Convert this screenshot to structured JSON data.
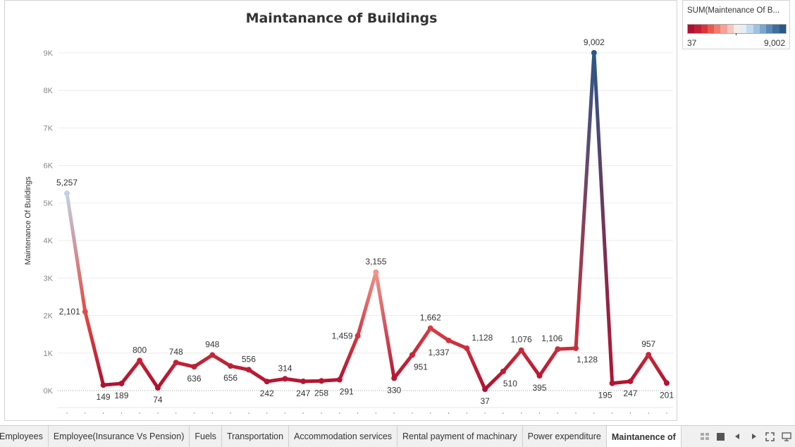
{
  "chart_data": {
    "type": "line",
    "title": "Maintanance of Buildings",
    "xlabel": "",
    "ylabel": "Maintenance Of Buildings",
    "ylim": [
      0,
      9300
    ],
    "y_ticks": [
      "0K",
      "1K",
      "2K",
      "3K",
      "4K",
      "5K",
      "6K",
      "7K",
      "8K",
      "9K"
    ],
    "grid": true,
    "values": [
      5257,
      2101,
      149,
      189,
      800,
      74,
      748,
      636,
      948,
      656,
      556,
      242,
      314,
      247,
      258,
      291,
      1459,
      3155,
      330,
      951,
      1662,
      1337,
      1128,
      37,
      510,
      1076,
      395,
      1106,
      1128,
      9002,
      195,
      247,
      957,
      201
    ],
    "labels": [
      "5,257",
      "2,101",
      "149",
      "189",
      "800",
      "74",
      "748",
      "636",
      "948",
      "656",
      "556",
      "242",
      "314",
      "247",
      "258",
      "291",
      "1,459",
      "3,155",
      "330",
      "951",
      "1,662",
      "1,337",
      "1,128",
      "37",
      "510",
      "1,076",
      "395",
      "1,106",
      "",
      "9,002",
      "195",
      "247",
      "957",
      "201"
    ],
    "extra_label": "1,128",
    "color_legend": {
      "title": "SUM(Maintenance Of B...",
      "min_label": "37",
      "max_label": "9,002",
      "min": 37,
      "max": 9002,
      "diverging_center": 4519.5,
      "palette": [
        "#b0102f",
        "#c21f35",
        "#d8353b",
        "#e85a4e",
        "#f37d6d",
        "#f6a296",
        "#f8c7bf",
        "#f6ecea",
        "#e4eef6",
        "#c2dbee",
        "#9dc3e3",
        "#7aa6cf",
        "#5a88b8",
        "#3f6e9f",
        "#2b5887"
      ]
    }
  },
  "tabs": [
    {
      "label": "Employees"
    },
    {
      "label": "Employee(Insurance Vs Pension)"
    },
    {
      "label": "Fuels"
    },
    {
      "label": "Transportation"
    },
    {
      "label": "Accommodation services"
    },
    {
      "label": "Rental payment of machinary"
    },
    {
      "label": "Power expenditure"
    },
    {
      "label": "Maintanence of"
    }
  ],
  "tab_controls": [
    {
      "icon": "grid-view-icon"
    },
    {
      "icon": "filmstrip-icon"
    },
    {
      "icon": "previous-arrow-icon"
    },
    {
      "icon": "next-arrow-icon"
    },
    {
      "icon": "fullscreen-icon"
    },
    {
      "icon": "presentation-mode-icon"
    }
  ]
}
